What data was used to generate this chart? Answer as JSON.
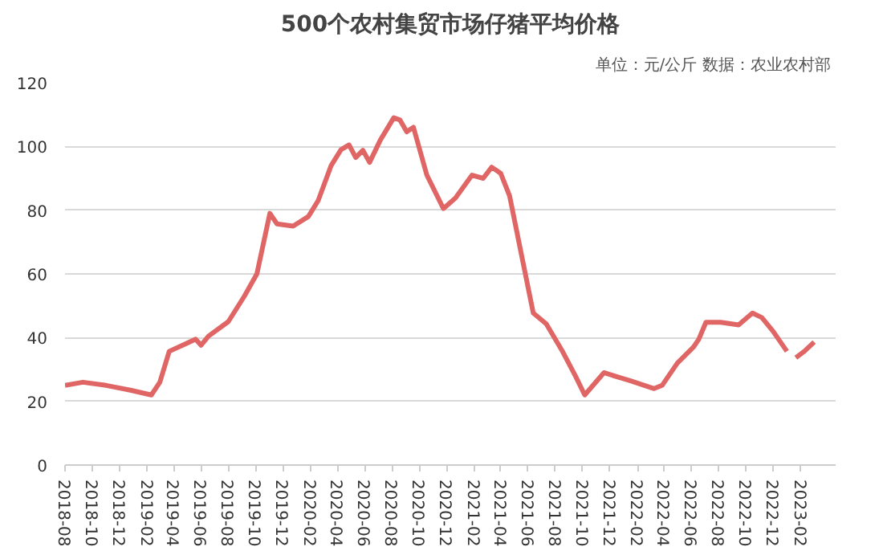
{
  "chart_data": {
    "type": "line",
    "title": "500个农村集贸市场仔猪平均价格",
    "annotations": [
      "单位：元/公斤  数据：农业农村部"
    ],
    "x": [
      "2018-08-01",
      "2018-09-10",
      "2018-11-01",
      "2018-12-25",
      "2019-02-10",
      "2019-03-01",
      "2019-03-22",
      "2019-04-27",
      "2019-05-20",
      "2019-06-01",
      "2019-06-18",
      "2019-08-01",
      "2019-09-06",
      "2019-10-04",
      "2019-11-02",
      "2019-11-18",
      "2019-12-24",
      "2020-01-27",
      "2020-02-18",
      "2020-03-18",
      "2020-04-09",
      "2020-04-27",
      "2020-05-12",
      "2020-05-28",
      "2020-06-12",
      "2020-07-06",
      "2020-08-05",
      "2020-08-19",
      "2020-09-03",
      "2020-09-18",
      "2020-10-18",
      "2020-11-24",
      "2020-12-21",
      "2021-01-27",
      "2021-02-21",
      "2021-03-12",
      "2021-04-01",
      "2021-04-21",
      "2021-05-19",
      "2021-06-13",
      "2021-07-12",
      "2021-08-16",
      "2021-09-15",
      "2021-10-06",
      "2021-11-18",
      "2021-12-22",
      "2022-01-15",
      "2022-03-10",
      "2022-03-28",
      "2022-05-01",
      "2022-06-06",
      "2022-06-18",
      "2022-07-04",
      "2022-08-06",
      "2022-09-15",
      "2022-10-16",
      "2022-11-06",
      "2022-12-01",
      "2023-01-01"
    ],
    "series": [
      {
        "color": "#e06666",
        "values": [
          25,
          26,
          25,
          23.5,
          22,
          26,
          35.7,
          38,
          39.5,
          37.6,
          40.5,
          45,
          53,
          60,
          79,
          75.7,
          75,
          78,
          83,
          94,
          99,
          100.5,
          96.5,
          98.8,
          95,
          102,
          109,
          108.3,
          104.6,
          106,
          91,
          80.5,
          83.8,
          91,
          90,
          93.5,
          91.6,
          84.5,
          65,
          47.7,
          44.3,
          36,
          28,
          22,
          29,
          27.5,
          26.5,
          24,
          25,
          32,
          37,
          39.5,
          44.8,
          44.8,
          44,
          47.7,
          46.3,
          42,
          35.7
        ]
      },
      {
        "color": "#e06666",
        "x": [
          "2023-01-21",
          "2023-02-09",
          "2023-03-03"
        ],
        "values": [
          33.7,
          35.7,
          38.6
        ]
      }
    ],
    "xlim": [
      "2018-08-01",
      "2023-04-20"
    ],
    "xticks": [
      "2018-08",
      "2018-10",
      "2018-12",
      "2019-02",
      "2019-04",
      "2019-06",
      "2019-08",
      "2019-10",
      "2019-12",
      "2020-02",
      "2020-04",
      "2020-06",
      "2020-08",
      "2020-10",
      "2020-12",
      "2021-02",
      "2021-04",
      "2021-06",
      "2021-08",
      "2021-10",
      "2021-12",
      "2022-02",
      "2022-04",
      "2022-06",
      "2022-08",
      "2022-10",
      "2022-12",
      "2023-02"
    ],
    "ylim": [
      0,
      120
    ],
    "yticks": [
      0,
      20,
      40,
      60,
      80,
      100,
      120
    ],
    "grid": "y",
    "marker": "none",
    "line_style": "solid"
  }
}
